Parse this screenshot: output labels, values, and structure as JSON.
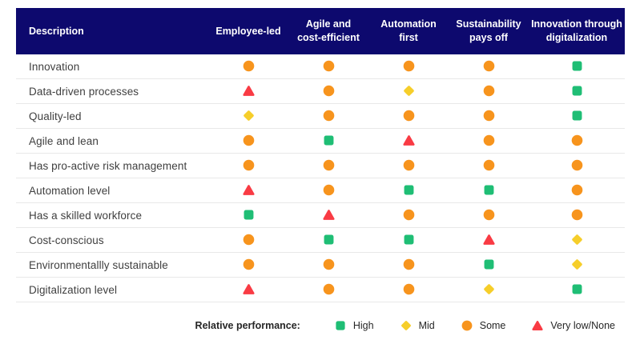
{
  "chart_data": {
    "type": "table",
    "columns": [
      "Description",
      "Employee-led",
      "Agile and\ncost-efficient",
      "Automation\nfirst",
      "Sustainability\npays off",
      "Innovation through\ndigitalization"
    ],
    "rows": [
      {
        "label": "Innovation",
        "values": [
          "some",
          "some",
          "some",
          "some",
          "high"
        ]
      },
      {
        "label": "Data-driven processes",
        "values": [
          "verylow",
          "some",
          "mid",
          "some",
          "high"
        ]
      },
      {
        "label": "Quality-led",
        "values": [
          "mid",
          "some",
          "some",
          "some",
          "high"
        ]
      },
      {
        "label": "Agile and lean",
        "values": [
          "some",
          "high",
          "verylow",
          "some",
          "some"
        ]
      },
      {
        "label": "Has pro-active risk management",
        "values": [
          "some",
          "some",
          "some",
          "some",
          "some"
        ]
      },
      {
        "label": "Automation level",
        "values": [
          "verylow",
          "some",
          "high",
          "high",
          "some"
        ]
      },
      {
        "label": "Has a skilled workforce",
        "values": [
          "high",
          "verylow",
          "some",
          "some",
          "some"
        ]
      },
      {
        "label": "Cost-conscious",
        "values": [
          "some",
          "high",
          "high",
          "verylow",
          "mid"
        ]
      },
      {
        "label": "Environmentallly sustainable",
        "values": [
          "some",
          "some",
          "some",
          "high",
          "mid"
        ]
      },
      {
        "label": "Digitalization level",
        "values": [
          "verylow",
          "some",
          "some",
          "mid",
          "high"
        ]
      }
    ],
    "levels": {
      "high": {
        "shape": "square",
        "color": "#1FBE75",
        "label": "High"
      },
      "mid": {
        "shape": "diamond",
        "color": "#F6CE2A",
        "label": "Mid"
      },
      "some": {
        "shape": "circle",
        "color": "#F7941D",
        "label": "Some"
      },
      "verylow": {
        "shape": "triangle",
        "color": "#F93B44",
        "label": "Very low/None"
      }
    },
    "legend_title": "Relative performance:",
    "legend_order": [
      "high",
      "mid",
      "some",
      "verylow"
    ]
  },
  "colors": {
    "header_bg": "#0D096E",
    "header_text": "#FFFFFF",
    "row_text": "#3F3F3F",
    "row_border": "#E8E8E8",
    "legend_text": "#262626"
  }
}
